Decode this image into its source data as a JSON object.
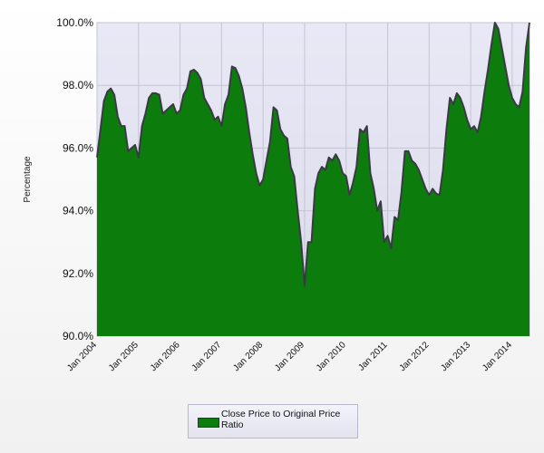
{
  "chart_data": {
    "type": "area",
    "title": "",
    "xlabel": "",
    "ylabel": "Percentage",
    "ylim": [
      90,
      100
    ],
    "y_ticks": [
      "90.0%",
      "92.0%",
      "94.0%",
      "96.0%",
      "98.0%",
      "100.0%"
    ],
    "x_ticks": [
      "Jan 2004",
      "Jan 2005",
      "Jan 2006",
      "Jan 2007",
      "Jan 2008",
      "Jan 2009",
      "Jan 2010",
      "Jan 2011",
      "Jan 2012",
      "Jan 2013",
      "Jan 2014"
    ],
    "grid": true,
    "legend_position": "bottom",
    "series": [
      {
        "name": "Close Price to Original Price Ratio",
        "color": "#0c7d0c",
        "x": [
          "2004-01",
          "2004-02",
          "2004-03",
          "2004-04",
          "2004-05",
          "2004-06",
          "2004-07",
          "2004-08",
          "2004-09",
          "2004-10",
          "2004-11",
          "2004-12",
          "2005-01",
          "2005-02",
          "2005-03",
          "2005-04",
          "2005-05",
          "2005-06",
          "2005-07",
          "2005-08",
          "2005-09",
          "2005-10",
          "2005-11",
          "2005-12",
          "2006-01",
          "2006-02",
          "2006-03",
          "2006-04",
          "2006-05",
          "2006-06",
          "2006-07",
          "2006-08",
          "2006-09",
          "2006-10",
          "2006-11",
          "2006-12",
          "2007-01",
          "2007-02",
          "2007-03",
          "2007-04",
          "2007-05",
          "2007-06",
          "2007-07",
          "2007-08",
          "2007-09",
          "2007-10",
          "2007-11",
          "2007-12",
          "2008-01",
          "2008-02",
          "2008-03",
          "2008-04",
          "2008-05",
          "2008-06",
          "2008-07",
          "2008-08",
          "2008-09",
          "2008-10",
          "2008-11",
          "2008-12",
          "2009-01",
          "2009-02",
          "2009-03",
          "2009-04",
          "2009-05",
          "2009-06",
          "2009-07",
          "2009-08",
          "2009-09",
          "2009-10",
          "2009-11",
          "2009-12",
          "2010-01",
          "2010-02",
          "2010-03",
          "2010-04",
          "2010-05",
          "2010-06",
          "2010-07",
          "2010-08",
          "2010-09",
          "2010-10",
          "2010-11",
          "2010-12",
          "2011-01",
          "2011-02",
          "2011-03",
          "2011-04",
          "2011-05",
          "2011-06",
          "2011-07",
          "2011-08",
          "2011-09",
          "2011-10",
          "2011-11",
          "2011-12",
          "2012-01",
          "2012-02",
          "2012-03",
          "2012-04",
          "2012-05",
          "2012-06",
          "2012-07",
          "2012-08",
          "2012-09",
          "2012-10",
          "2012-11",
          "2012-12",
          "2013-01",
          "2013-02",
          "2013-03",
          "2013-04",
          "2013-05",
          "2013-06",
          "2013-07",
          "2013-08",
          "2013-09",
          "2013-10",
          "2013-11",
          "2013-12",
          "2014-01",
          "2014-02",
          "2014-03",
          "2014-04",
          "2014-05",
          "2014-06"
        ],
        "values": [
          95.7,
          96.6,
          97.5,
          97.8,
          97.9,
          97.7,
          97.0,
          96.7,
          96.7,
          95.9,
          96.0,
          96.1,
          95.7,
          96.7,
          97.1,
          97.6,
          97.75,
          97.75,
          97.7,
          97.1,
          97.2,
          97.3,
          97.4,
          97.1,
          97.2,
          97.7,
          97.9,
          98.45,
          98.5,
          98.4,
          98.2,
          97.6,
          97.4,
          97.2,
          96.9,
          97.0,
          96.7,
          97.4,
          97.7,
          98.6,
          98.55,
          98.3,
          97.9,
          97.3,
          96.5,
          95.8,
          95.2,
          94.8,
          95.0,
          95.6,
          96.2,
          97.3,
          97.2,
          96.6,
          96.4,
          96.3,
          95.4,
          95.1,
          94.0,
          93.0,
          91.6,
          93.0,
          93.0,
          94.7,
          95.2,
          95.4,
          95.3,
          95.7,
          95.6,
          95.8,
          95.6,
          95.2,
          95.1,
          94.5,
          94.9,
          95.4,
          96.6,
          96.5,
          96.7,
          95.2,
          94.7,
          94.0,
          94.3,
          93.0,
          93.2,
          92.8,
          93.8,
          93.7,
          94.6,
          95.9,
          95.9,
          95.6,
          95.5,
          95.3,
          95.0,
          94.7,
          94.5,
          94.7,
          94.55,
          94.5,
          95.3,
          96.6,
          97.6,
          97.4,
          97.75,
          97.6,
          97.3,
          96.9,
          96.6,
          96.7,
          96.5,
          97.0,
          97.8,
          98.5,
          99.3,
          100.0,
          99.8,
          99.2,
          98.6,
          98.0,
          97.6,
          97.4,
          97.3,
          97.8,
          99.2,
          100.0
        ]
      }
    ]
  },
  "legend": {
    "label": "Close Price to Original Price Ratio"
  }
}
